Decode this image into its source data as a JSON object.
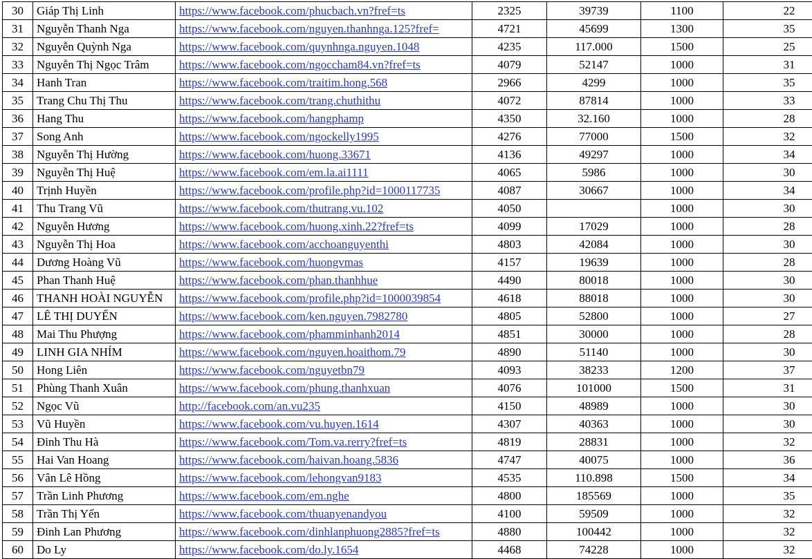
{
  "table": {
    "link_color": "#2838cf",
    "border_color": "#000000",
    "rows": [
      {
        "no": "30",
        "name": "Giáp Thị Linh",
        "url": "https://www.facebook.com/phucbach.vn?fref=ts",
        "values": [
          "2325",
          "39739",
          "1100",
          "22"
        ]
      },
      {
        "no": "31",
        "name": "Nguyễn Thanh Nga",
        "url": "https://www.facebook.com/nguyen.thanhnga.125?fref=",
        "values": [
          "4721",
          "45699",
          "1300",
          "35"
        ]
      },
      {
        "no": "32",
        "name": "Nguyễn Quỳnh Nga",
        "url": "https://www.facebook.com/quynhnga.nguyen.1048",
        "values": [
          "4235",
          "117.000",
          "1500",
          "25"
        ]
      },
      {
        "no": "33",
        "name": "Nguyễn Thị Ngọc Trâm",
        "url": "https://www.facebook.com/ngoccham84.vn?fref=ts",
        "values": [
          "4079",
          "52147",
          "1000",
          "31"
        ]
      },
      {
        "no": "34",
        "name": "Hanh Tran",
        "url": "https://www.facebook.com/traitim.hong.568",
        "values": [
          "2966",
          "4299",
          "1000",
          "35"
        ]
      },
      {
        "no": "35",
        "name": "Trang Chu Thị Thu",
        "url": "https://www.facebook.com/trang.chuthithu",
        "values": [
          "4072",
          "87814",
          "1000",
          "33"
        ]
      },
      {
        "no": "36",
        "name": "Hang Thu",
        "url": "https://www.facebook.com/hangphamp",
        "values": [
          "4350",
          "32.160",
          "1000",
          "28"
        ]
      },
      {
        "no": "37",
        "name": "Song Anh",
        "url": "https://www.facebook.com/ngockelly1995",
        "values": [
          "4276",
          "77000",
          "1500",
          "32"
        ]
      },
      {
        "no": "38",
        "name": "Nguyễn Thị Hường",
        "url": "https://www.facebook.com/huong.33671",
        "values": [
          "4136",
          "49297",
          "1000",
          "34"
        ]
      },
      {
        "no": "39",
        "name": "Nguyễn Thị Huệ",
        "url": "https://www.facebook.com/em.la.ai1111",
        "values": [
          "4065",
          "5986",
          "1000",
          "30"
        ]
      },
      {
        "no": "40",
        "name": "Trịnh Huyền",
        "url": "https://www.facebook.com/profile.php?id=1000117735",
        "values": [
          "4087",
          "30667",
          "1000",
          "34"
        ]
      },
      {
        "no": "41",
        "name": "Thu Trang Vũ",
        "url": "https://www.facebook.com/thutrang.vu.102",
        "values": [
          "4050",
          "",
          "1000",
          "30"
        ]
      },
      {
        "no": "42",
        "name": "Nguyễn Hương",
        "url": "https://www.facebook.com/huong.xinh.22?fref=ts",
        "values": [
          "4099",
          "17029",
          "1000",
          "28"
        ]
      },
      {
        "no": "43",
        "name": "Nguyễn Thị Hoa",
        "url": "https://www.facebook.com/acchoanguyenthi",
        "values": [
          "4803",
          "42084",
          "1000",
          "30"
        ]
      },
      {
        "no": "44",
        "name": "Dương Hoàng Vũ",
        "url": "https://www.facebook.com/huongvmas",
        "values": [
          "4157",
          "19639",
          "1000",
          "28"
        ]
      },
      {
        "no": "45",
        "name": "Phan Thanh Huệ",
        "url": "https://www.facebook.com/phan.thanhhue",
        "values": [
          "4490",
          "80018",
          "1000",
          "30"
        ]
      },
      {
        "no": "46",
        "name": "THANH HOÀI NGUYỄN",
        "url": "https://www.facebook.com/profile.php?id=1000039854",
        "values": [
          "4618",
          "88018",
          "1000",
          "30"
        ]
      },
      {
        "no": "47",
        "name": "LÊ THỊ DUYẾN",
        "url": "https://www.facebook.com/ken.nguyen.7982780",
        "values": [
          "4805",
          "52800",
          "1000",
          "27"
        ]
      },
      {
        "no": "48",
        "name": "Mai Thu Phượng",
        "url": "https://www.facebook.com/phamminhanh2014",
        "values": [
          "4851",
          "30000",
          "1000",
          "28"
        ]
      },
      {
        "no": "49",
        "name": "LINH GIA NHÍM",
        "url": "https://www.facebook.com/nguyen.hoaithom.79",
        "values": [
          "4890",
          "51140",
          "1000",
          "30"
        ]
      },
      {
        "no": "50",
        "name": "Hong Liên",
        "url": "https://www.facebook.com/nguyetbn79",
        "values": [
          "4093",
          "38233",
          "1200",
          "37"
        ]
      },
      {
        "no": "51",
        "name": "Phùng Thanh Xuân",
        "url": "https://www.facebook.com/phung.thanhxuan",
        "values": [
          "4076",
          "101000",
          "1500",
          "31"
        ]
      },
      {
        "no": "52",
        "name": "Ngọc Vũ",
        "url": "http://facebook.com/an.vu235",
        "values": [
          "4150",
          "48989",
          "1000",
          "30"
        ]
      },
      {
        "no": "53",
        "name": "Vũ Huyền",
        "url": "https://www.facebook.com/vu.huyen.1614",
        "values": [
          "4307",
          "40363",
          "1000",
          "30"
        ]
      },
      {
        "no": "54",
        "name": "Đinh Thu Hà",
        "url": "https://www.facebook.com/Tom.va.rerry?fref=ts",
        "values": [
          "4819",
          "28831",
          "1000",
          "32"
        ]
      },
      {
        "no": "55",
        "name": "Hai Van Hoang",
        "url": "https://www.facebook.com/haivan.hoang.5836",
        "values": [
          "4747",
          "40075",
          "1000",
          "36"
        ]
      },
      {
        "no": "56",
        "name": "Vân Lê Hồng",
        "url": "https://www.facebook.com/lehongvan9183",
        "values": [
          "4535",
          "110.898",
          "1500",
          "34"
        ]
      },
      {
        "no": "57",
        "name": "Trần Linh Phương",
        "url": "https://www.facebook.com/em.nghe",
        "values": [
          "4800",
          "185569",
          "1000",
          "35"
        ]
      },
      {
        "no": "58",
        "name": "Trần Thị Yến",
        "url": "https://www.facebook.com/thuanyenandyou",
        "values": [
          "4100",
          "59509",
          "1000",
          "32"
        ]
      },
      {
        "no": "59",
        "name": "Đinh Lan Phương",
        "url": "https://www.facebook.com/dinhlanphuong2885?fref=ts",
        "values": [
          "4880",
          "100442",
          "1000",
          "32"
        ]
      },
      {
        "no": "60",
        "name": "Do Ly",
        "url": "https://www.facebook.com/do.ly.1654",
        "values": [
          "4468",
          "74228",
          "1000",
          "32"
        ]
      }
    ]
  }
}
